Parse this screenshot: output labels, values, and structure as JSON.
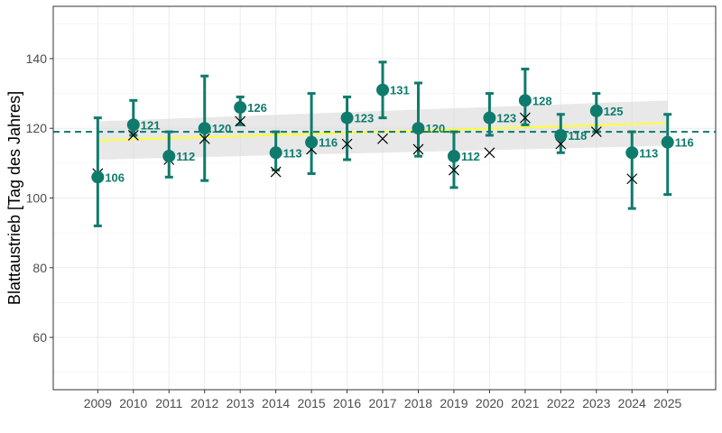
{
  "chart_data": {
    "type": "scatter",
    "title": "",
    "xlabel": "",
    "ylabel": "Blattaustrieb [Tag des Jahres]",
    "xlim": [
      2007.75,
      2026.35
    ],
    "ylim": [
      45,
      155
    ],
    "grid": true,
    "legend": "none",
    "x_ticks": [
      "2009",
      "2010",
      "2011",
      "2012",
      "2013",
      "2014",
      "2015",
      "2016",
      "2017",
      "2018",
      "2019",
      "2020",
      "2021",
      "2022",
      "2023",
      "2024",
      "2025"
    ],
    "y_ticks": [
      60,
      80,
      100,
      120,
      140
    ],
    "reference_line": 119,
    "trend": {
      "start": [
        2009,
        116.5
      ],
      "end": [
        2025,
        121.5
      ],
      "band_start": [
        111,
        122
      ],
      "band_end": [
        115,
        128
      ]
    },
    "series": [
      {
        "values": [
          {
            "x": 2009,
            "y": 106,
            "label": "106",
            "lo": 92,
            "hi": 123,
            "cross": 107
          },
          {
            "x": 2010,
            "y": 121,
            "label": "121",
            "lo": 118,
            "hi": 128,
            "cross": 118
          },
          {
            "x": 2011,
            "y": 112,
            "label": "112",
            "lo": 106,
            "hi": 119,
            "cross": 111
          },
          {
            "x": 2012,
            "y": 120,
            "label": "120",
            "lo": 105,
            "hi": 135,
            "cross": 117
          },
          {
            "x": 2013,
            "y": 126,
            "label": "126",
            "lo": 121,
            "hi": 129,
            "cross": 122
          },
          {
            "x": 2014,
            "y": 113,
            "label": "113",
            "lo": 108,
            "hi": 119,
            "cross": 107.5
          },
          {
            "x": 2015,
            "y": 116,
            "label": "116",
            "lo": 107,
            "hi": 130,
            "cross": 114
          },
          {
            "x": 2016,
            "y": 123,
            "label": "123",
            "lo": 111,
            "hi": 129,
            "cross": 115.5
          },
          {
            "x": 2017,
            "y": 131,
            "label": "131",
            "lo": 123,
            "hi": 139,
            "cross": 117
          },
          {
            "x": 2018,
            "y": 120,
            "label": "120",
            "lo": 112,
            "hi": 133,
            "cross": 114
          },
          {
            "x": 2019,
            "y": 112,
            "label": "112",
            "lo": 103,
            "hi": 119,
            "cross": 108
          },
          {
            "x": 2020,
            "y": 123,
            "label": "123",
            "lo": 118,
            "hi": 130,
            "cross": 113
          },
          {
            "x": 2021,
            "y": 128,
            "label": "128",
            "lo": 121,
            "hi": 137,
            "cross": 123
          },
          {
            "x": 2022,
            "y": 118,
            "label": "118",
            "lo": 113,
            "hi": 124,
            "cross": 115.5
          },
          {
            "x": 2023,
            "y": 125,
            "label": "125",
            "lo": 119,
            "hi": 130,
            "cross": 119
          },
          {
            "x": 2024,
            "y": 113,
            "label": "113",
            "lo": 97,
            "hi": 119,
            "cross": 105.5
          },
          {
            "x": 2025,
            "y": 116,
            "label": "116",
            "lo": 101,
            "hi": 124,
            "cross": null
          }
        ]
      }
    ],
    "colors": {
      "point": "#0f7b6c",
      "line": "#ffff33",
      "band": "#d9d9d9",
      "cross": "#000000",
      "grid": "#ebebeb",
      "border": "#333333"
    }
  }
}
